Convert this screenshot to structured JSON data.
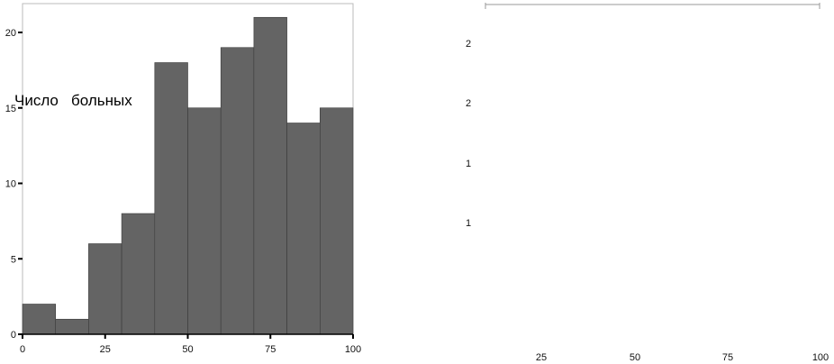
{
  "chart_data": [
    {
      "type": "bar",
      "subtype": "histogram",
      "bins": [
        [
          0,
          10
        ],
        [
          10,
          20
        ],
        [
          20,
          30
        ],
        [
          30,
          40
        ],
        [
          40,
          50
        ],
        [
          50,
          60
        ],
        [
          60,
          70
        ],
        [
          70,
          80
        ],
        [
          80,
          90
        ],
        [
          90,
          100
        ]
      ],
      "values": [
        2,
        1,
        6,
        8,
        18,
        15,
        19,
        21,
        14,
        15
      ],
      "ylabel": "Число   больных",
      "xlabel": "",
      "xlim": [
        0,
        100
      ],
      "ylim": [
        0,
        22
      ],
      "x_ticks": [
        "0",
        "25",
        "50",
        "75",
        "100"
      ],
      "y_ticks": [
        "0",
        "5",
        "10",
        "15",
        "20"
      ],
      "bar_color": "#646464",
      "grid": false
    },
    {
      "type": "bar",
      "values": [],
      "x_ticks": [
        "25",
        "50",
        "75",
        "100"
      ],
      "y_ticks": [
        "2",
        "2",
        "1",
        "1"
      ],
      "grid": false
    }
  ]
}
